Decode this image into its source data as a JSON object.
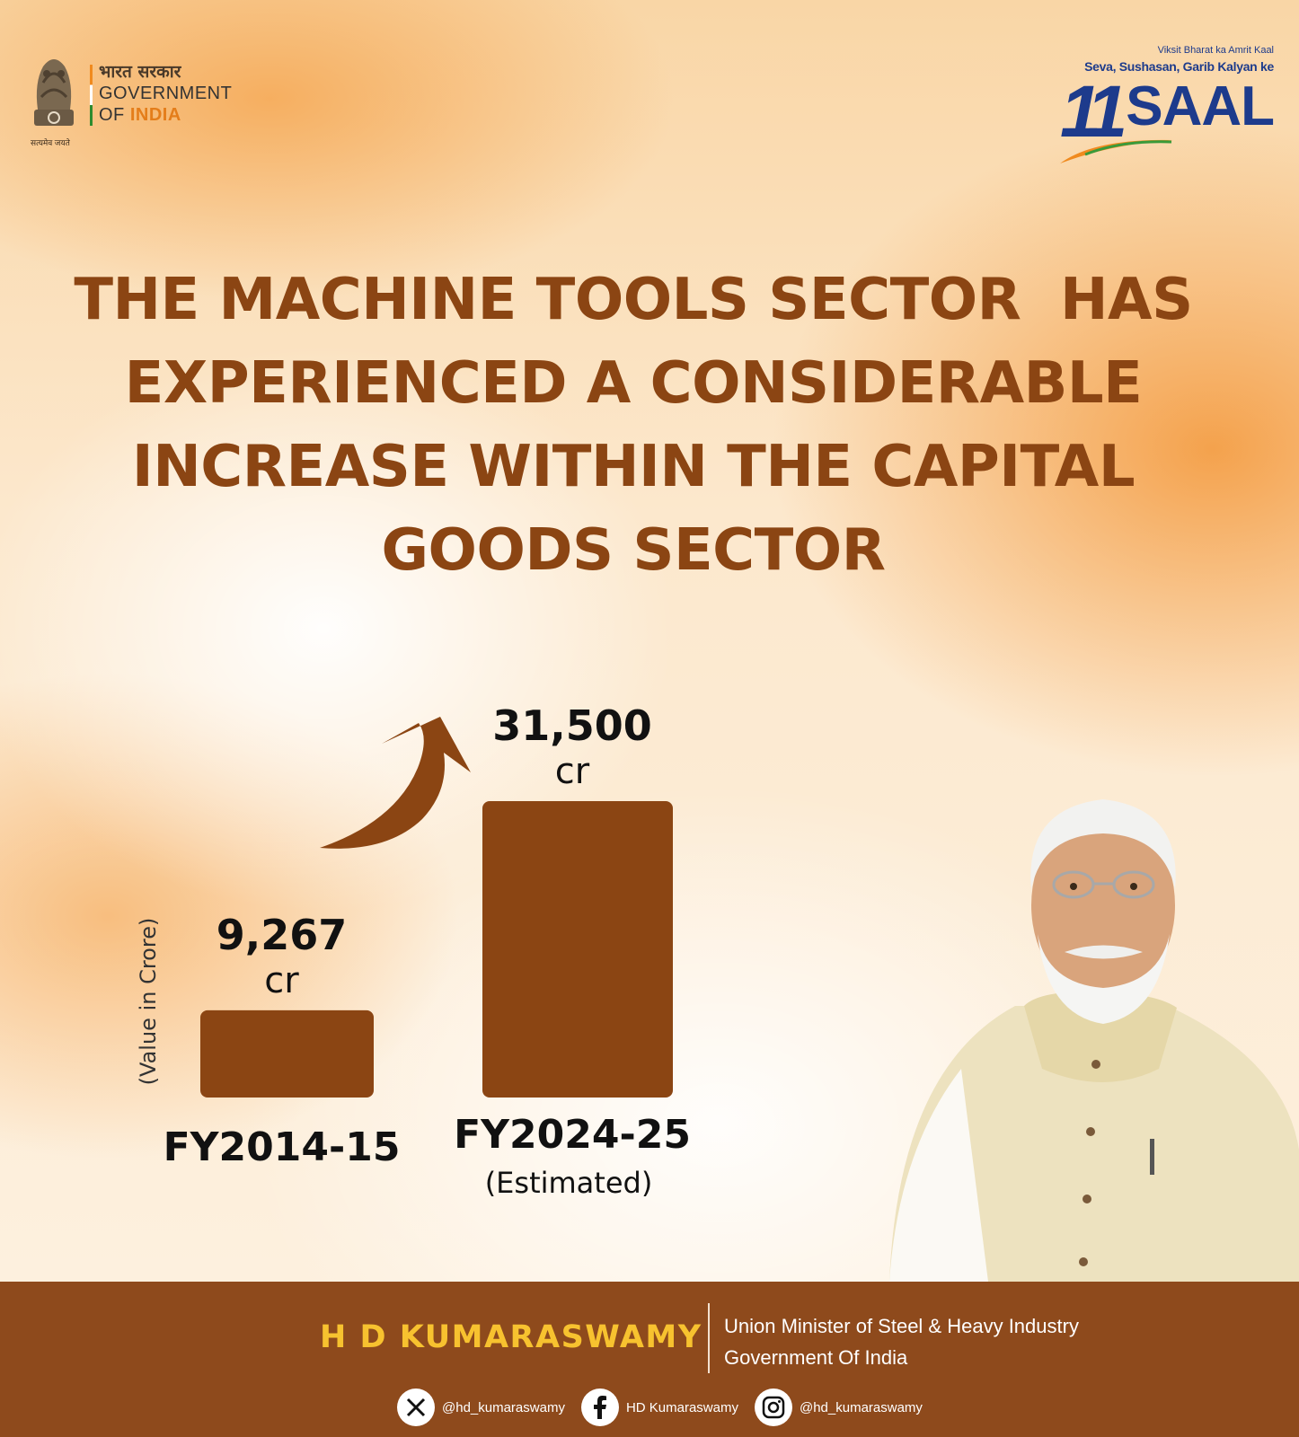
{
  "header": {
    "gov_hindi": "भारत सरकार",
    "gov_line1": "GOVERNMENT",
    "gov_line2_of": "OF ",
    "gov_line2_india": "INDIA",
    "emblem_motto": "सत्यमेव जयते",
    "campaign_line1": "Viksit Bharat ka Amrit Kaal",
    "campaign_line2": "Seva, Sushasan, Garib Kalyan ke",
    "campaign_number": "11",
    "campaign_word": "SAAL"
  },
  "headline": {
    "line1": "THE MACHINE TOOLS SECTOR  HAS",
    "line2": "EXPERIENCED A CONSIDERABLE",
    "line3": "INCREASE WITHIN THE CAPITAL",
    "line4": "GOODS SECTOR"
  },
  "chart_data": {
    "type": "bar",
    "categories": [
      "FY2014-15",
      "FY2024-25"
    ],
    "category_notes": [
      "",
      "(Estimated)"
    ],
    "values": [
      9267,
      31500
    ],
    "value_labels": [
      "9,267",
      "31,500"
    ],
    "value_unit": "cr",
    "ylabel": "(Value in Crore)",
    "bar_color": "#8b4513",
    "grid": false,
    "legend": "none"
  },
  "footer": {
    "name": "H D KUMARASWAMY",
    "title_line1": "Union Minister of Steel & Heavy Industry",
    "title_line2": "Government Of India",
    "socials": [
      {
        "icon": "x-logo-icon",
        "handle": "@hd_kumaraswamy"
      },
      {
        "icon": "facebook-icon",
        "handle": "HD Kumaraswamy"
      },
      {
        "icon": "instagram-icon",
        "handle": "@hd_kumaraswamy"
      }
    ]
  },
  "colors": {
    "brown": "#8b4513",
    "footer_bg": "#8e4a1c",
    "name_yellow": "#f7c22f",
    "campaign_blue": "#1d3b8c"
  }
}
